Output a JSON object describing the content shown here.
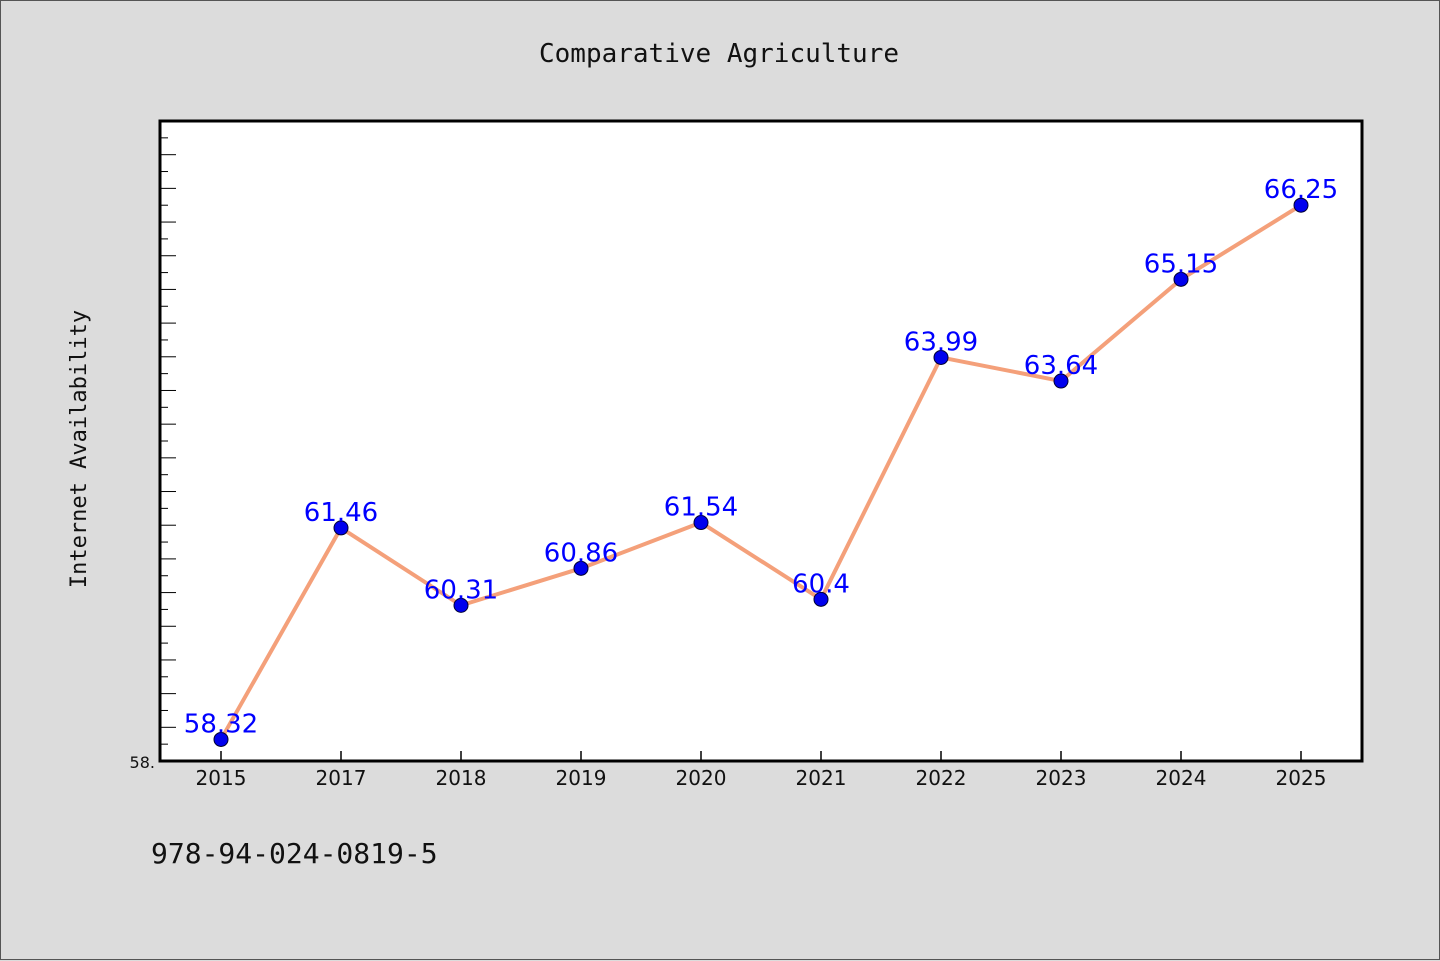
{
  "chart_data": {
    "type": "line",
    "title": "Comparative Agriculture",
    "xlabel": "",
    "ylabel": "Internet Availability",
    "categories": [
      "2015",
      "2017",
      "2018",
      "2019",
      "2020",
      "2021",
      "2022",
      "2023",
      "2024",
      "2025"
    ],
    "values": [
      58.32,
      61.46,
      60.31,
      60.86,
      61.54,
      60.4,
      63.99,
      63.64,
      65.15,
      66.25
    ],
    "data_labels": [
      "58.32",
      "61.46",
      "60.31",
      "60.86",
      "61.54",
      "60.4",
      "63.99",
      "63.64",
      "65.15",
      "66.25"
    ],
    "ylim": [
      58.0,
      67.5
    ],
    "ytick_label": "58.",
    "line_color": "#f4a07a",
    "marker_color": "#0000ee",
    "label_color": "#0000ff",
    "grid": false
  },
  "footer": {
    "isbn": "978-94-024-0819-5"
  }
}
